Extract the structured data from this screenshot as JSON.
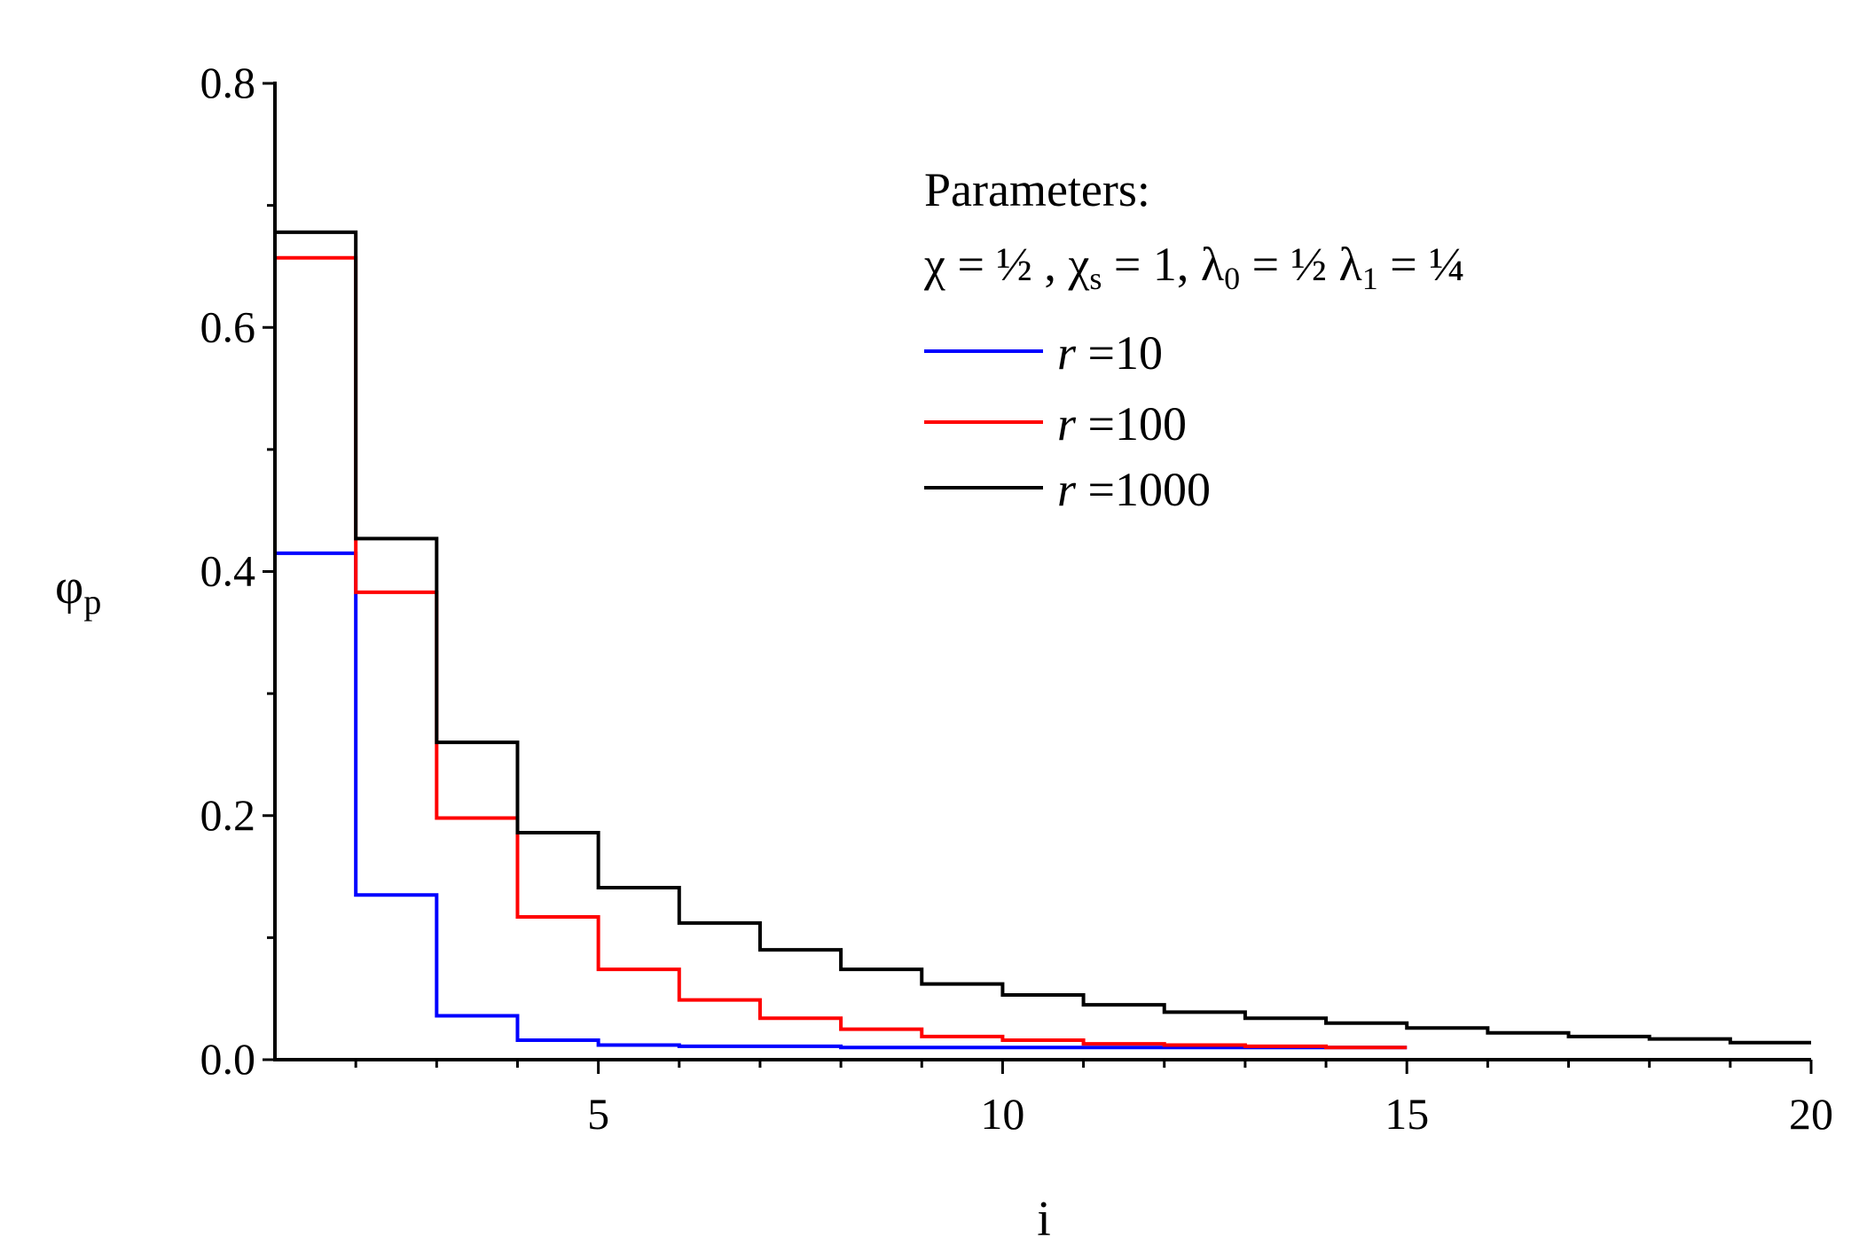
{
  "chart_data": {
    "type": "line",
    "step": true,
    "xlabel": "i",
    "ylabel": {
      "main": "φ",
      "sub": "p"
    },
    "xlim": [
      1,
      20
    ],
    "ylim": [
      0,
      0.8
    ],
    "xticks": [
      5,
      10,
      15,
      20
    ],
    "yticks": [
      0.0,
      0.2,
      0.4,
      0.6,
      0.8
    ],
    "ytick_labels": [
      "0.0",
      "0.2",
      "0.4",
      "0.6",
      "0.8"
    ],
    "legend": {
      "title": "Parameters:",
      "params": [
        {
          "sym": "χ",
          "sub": "",
          "eq": " = ½ , "
        },
        {
          "sym": "χ",
          "sub": "s",
          "eq": " =  1, "
        },
        {
          "sym": "λ",
          "sub": "0",
          "eq": " = ½  "
        },
        {
          "sym": "λ",
          "sub": "1",
          "eq": " = ¼"
        }
      ],
      "var": "r",
      "position": "top-right"
    },
    "series": [
      {
        "name": "=10",
        "color": "#0000ff",
        "x": [
          1,
          2,
          3,
          4,
          5,
          6,
          7,
          8,
          9,
          10,
          11,
          12,
          13,
          14
        ],
        "y": [
          0.415,
          0.135,
          0.036,
          0.016,
          0.012,
          0.011,
          0.011,
          0.01,
          0.01,
          0.01,
          0.01,
          0.01,
          0.01,
          0.01
        ]
      },
      {
        "name": "=100",
        "color": "#ff0000",
        "x": [
          1,
          2,
          3,
          4,
          5,
          6,
          7,
          8,
          9,
          10,
          11,
          12,
          13,
          14
        ],
        "y": [
          0.657,
          0.383,
          0.198,
          0.117,
          0.074,
          0.049,
          0.034,
          0.025,
          0.019,
          0.016,
          0.013,
          0.012,
          0.011,
          0.01
        ]
      },
      {
        "name": "=1000",
        "color": "#000000",
        "x": [
          1,
          2,
          3,
          4,
          5,
          6,
          7,
          8,
          9,
          10,
          11,
          12,
          13,
          14,
          15,
          16,
          17,
          18,
          19,
          20
        ],
        "y": [
          0.678,
          0.427,
          0.26,
          0.186,
          0.141,
          0.112,
          0.09,
          0.074,
          0.062,
          0.053,
          0.045,
          0.039,
          0.034,
          0.03,
          0.026,
          0.022,
          0.019,
          0.017,
          0.014,
          0.014
        ]
      }
    ]
  }
}
